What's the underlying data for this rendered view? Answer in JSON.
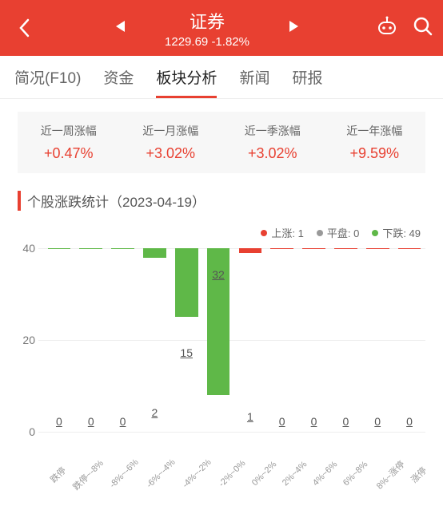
{
  "header": {
    "title": "证券",
    "index_value": "1229.69",
    "change_pct": "-1.82%",
    "bg_color": "#e84031"
  },
  "tabs": {
    "items": [
      "简况(F10)",
      "资金",
      "板块分析",
      "新闻",
      "研报"
    ],
    "active_index": 2
  },
  "periods": {
    "items": [
      {
        "label": "近一周涨幅",
        "value": "+0.47%",
        "color": "#e84031"
      },
      {
        "label": "近一月涨幅",
        "value": "+3.02%",
        "color": "#e84031"
      },
      {
        "label": "近一季涨幅",
        "value": "+3.02%",
        "color": "#e84031"
      },
      {
        "label": "近一年涨幅",
        "value": "+9.59%",
        "color": "#e84031"
      }
    ]
  },
  "section_title": "个股涨跌统计（2023-04-19）",
  "legend": {
    "items": [
      {
        "label": "上涨: 1",
        "color": "#e84031"
      },
      {
        "label": "平盘: 0",
        "color": "#999999"
      },
      {
        "label": "下跌: 49",
        "color": "#5fb848"
      }
    ]
  },
  "chart": {
    "type": "bar",
    "y_max": 40,
    "y_ticks": [
      0,
      20,
      40
    ],
    "grid_color": "#eeeeee",
    "categories": [
      "跌停",
      "跌停~-8%",
      "-8%~-6%",
      "-6%~-4%",
      "-4%~-2%",
      "-2%~0%",
      "0%~2%",
      "2%~4%",
      "4%~6%",
      "6%~8%",
      "8%~涨停",
      "涨停"
    ],
    "values": [
      0,
      0,
      0,
      2,
      15,
      32,
      1,
      0,
      0,
      0,
      0,
      0
    ],
    "bar_colors": [
      "#5fb848",
      "#5fb848",
      "#5fb848",
      "#5fb848",
      "#5fb848",
      "#5fb848",
      "#e84031",
      "#e84031",
      "#e84031",
      "#e84031",
      "#e84031",
      "#e84031"
    ],
    "axis_text_color": "#777777",
    "label_text_color": "#555555",
    "tick_fontsize": 14,
    "value_fontsize": 14,
    "xlabel_fontsize": 11
  }
}
